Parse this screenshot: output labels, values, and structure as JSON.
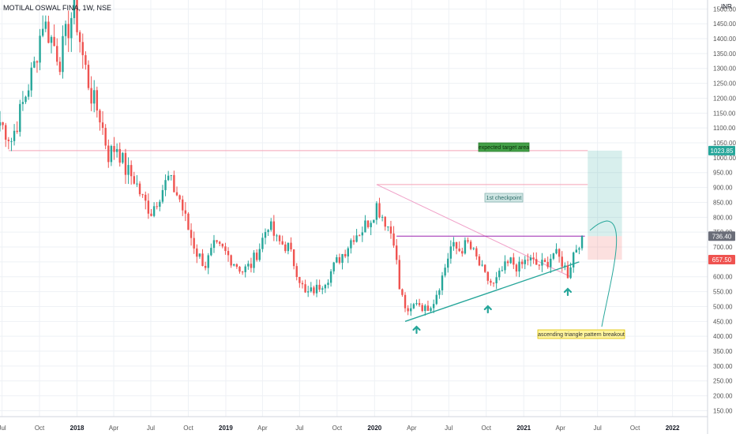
{
  "chart_data": {
    "type": "candlestick",
    "title": "MOTILAL OSWAL FINA, 1W, NSE",
    "unit": "INR",
    "colors": {
      "up": "#26a69a",
      "down": "#ef5350",
      "grid": "#eef1f5",
      "axis_text": "#555",
      "note_bg": "#f3e94b"
    },
    "y_axis": {
      "ylim": [
        130,
        1530
      ],
      "ticks": [
        1500,
        1450,
        1400,
        1350,
        1300,
        1250,
        1200,
        1150,
        1100,
        1050,
        1000,
        950,
        900,
        850,
        800,
        750,
        700,
        650,
        600,
        550,
        500,
        450,
        400,
        350,
        300,
        250,
        200,
        150
      ],
      "tick_labels": [
        "1500.00",
        "1450.00",
        "1400.00",
        "1350.00",
        "1300.00",
        "1250.00",
        "1200.00",
        "1150.00",
        "1100.00",
        "1050.00",
        "1000.00",
        "950.00",
        "900.00",
        "850.00",
        "800.00",
        "750.00",
        "700.00",
        "650.00",
        "600.00",
        "550.00",
        "500.00",
        "450.00",
        "400.00",
        "350.00",
        "300.00",
        "250.00",
        "200.00",
        "150.00"
      ]
    },
    "x_axis": {
      "start": "2017-06-26",
      "end": "2022-03-28",
      "ticks": [
        {
          "date": "2017-07-01",
          "label": "Jul",
          "bold": false
        },
        {
          "date": "2017-10-01",
          "label": "Oct",
          "bold": false
        },
        {
          "date": "2018-01-01",
          "label": "2018",
          "bold": true
        },
        {
          "date": "2018-04-01",
          "label": "Apr",
          "bold": false
        },
        {
          "date": "2018-07-01",
          "label": "Jul",
          "bold": false
        },
        {
          "date": "2018-10-01",
          "label": "Oct",
          "bold": false
        },
        {
          "date": "2019-01-01",
          "label": "2019",
          "bold": true
        },
        {
          "date": "2019-04-01",
          "label": "Apr",
          "bold": false
        },
        {
          "date": "2019-07-01",
          "label": "Jul",
          "bold": false
        },
        {
          "date": "2019-10-01",
          "label": "Oct",
          "bold": false
        },
        {
          "date": "2020-01-01",
          "label": "2020",
          "bold": true
        },
        {
          "date": "2020-04-01",
          "label": "Apr",
          "bold": false
        },
        {
          "date": "2020-07-01",
          "label": "Jul",
          "bold": false
        },
        {
          "date": "2020-10-01",
          "label": "Oct",
          "bold": false
        },
        {
          "date": "2021-01-01",
          "label": "2021",
          "bold": true
        },
        {
          "date": "2021-04-01",
          "label": "Apr",
          "bold": false
        },
        {
          "date": "2021-07-01",
          "label": "Jul",
          "bold": false
        },
        {
          "date": "2021-10-01",
          "label": "Oct",
          "bold": false
        },
        {
          "date": "2022-01-01",
          "label": "2022",
          "bold": true
        }
      ]
    },
    "price_anchors": [
      [
        "2017-06-26",
        1120
      ],
      [
        "2017-07-24",
        1060
      ],
      [
        "2017-08-21",
        1180
      ],
      [
        "2017-09-18",
        1310
      ],
      [
        "2017-10-09",
        1460
      ],
      [
        "2017-10-30",
        1400
      ],
      [
        "2017-11-20",
        1330
      ],
      [
        "2017-12-11",
        1440
      ],
      [
        "2017-12-25",
        1510
      ],
      [
        "2018-01-15",
        1340
      ],
      [
        "2018-02-05",
        1210
      ],
      [
        "2018-02-26",
        1140
      ],
      [
        "2018-03-19",
        1010
      ],
      [
        "2018-04-09",
        1040
      ],
      [
        "2018-04-30",
        960
      ],
      [
        "2018-05-21",
        930
      ],
      [
        "2018-06-11",
        860
      ],
      [
        "2018-07-02",
        820
      ],
      [
        "2018-07-23",
        880
      ],
      [
        "2018-08-13",
        930
      ],
      [
        "2018-09-10",
        860
      ],
      [
        "2018-10-01",
        760
      ],
      [
        "2018-10-22",
        680
      ],
      [
        "2018-11-12",
        640
      ],
      [
        "2018-12-03",
        700
      ],
      [
        "2018-12-24",
        690
      ],
      [
        "2019-01-21",
        650
      ],
      [
        "2019-02-11",
        620
      ],
      [
        "2019-03-04",
        640
      ],
      [
        "2019-03-25",
        700
      ],
      [
        "2019-04-15",
        780
      ],
      [
        "2019-05-06",
        720
      ],
      [
        "2019-06-03",
        700
      ],
      [
        "2019-06-24",
        620
      ],
      [
        "2019-07-15",
        540
      ],
      [
        "2019-08-12",
        560
      ],
      [
        "2019-09-09",
        600
      ],
      [
        "2019-09-30",
        650
      ],
      [
        "2019-10-21",
        690
      ],
      [
        "2019-11-11",
        740
      ],
      [
        "2019-12-02",
        760
      ],
      [
        "2019-12-23",
        800
      ],
      [
        "2020-01-06",
        840
      ],
      [
        "2020-01-27",
        790
      ],
      [
        "2020-02-17",
        730
      ],
      [
        "2020-03-02",
        560
      ],
      [
        "2020-03-23",
        470
      ],
      [
        "2020-04-13",
        520
      ],
      [
        "2020-05-04",
        490
      ],
      [
        "2020-05-25",
        520
      ],
      [
        "2020-06-15",
        600
      ],
      [
        "2020-07-06",
        700
      ],
      [
        "2020-07-27",
        690
      ],
      [
        "2020-08-17",
        710
      ],
      [
        "2020-09-07",
        660
      ],
      [
        "2020-09-28",
        600
      ],
      [
        "2020-10-19",
        570
      ],
      [
        "2020-11-09",
        620
      ],
      [
        "2020-11-30",
        650
      ],
      [
        "2020-12-21",
        630
      ],
      [
        "2021-01-11",
        660
      ],
      [
        "2021-02-01",
        640
      ],
      [
        "2021-02-22",
        640
      ],
      [
        "2021-03-15",
        680
      ],
      [
        "2021-04-05",
        650
      ],
      [
        "2021-04-19",
        610
      ],
      [
        "2021-05-03",
        680
      ],
      [
        "2021-05-17",
        720
      ],
      [
        "2021-05-24",
        736.4
      ]
    ],
    "levels": [
      {
        "name": "target",
        "value": 1023.85,
        "label": "1023.85",
        "color": "#26a69a"
      },
      {
        "name": "current",
        "value": 736.4,
        "label": "736.40",
        "color": "#6a6d78"
      },
      {
        "name": "stop",
        "value": 657.5,
        "label": "657.50",
        "color": "#ef5350"
      }
    ],
    "checkpoint": 910,
    "annotations": {
      "target_label": "expected target area",
      "checkpoint_label": "1st checkpoint",
      "pattern_label": "ascending triangle pattern breakout"
    }
  }
}
